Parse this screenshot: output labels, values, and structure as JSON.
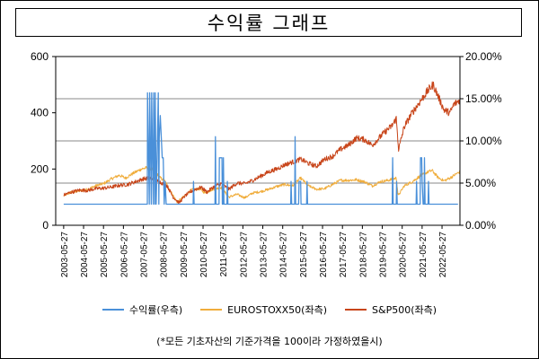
{
  "chart_data": {
    "type": "line",
    "title": "수익률 그래프",
    "footnote": "(*모든 기초자산의 기준가격을 100이라 가정하였을시)",
    "left_axis": {
      "ylim": [
        0,
        600
      ],
      "ticks": [
        "0",
        "200",
        "400",
        "600"
      ],
      "tick_values": [
        0,
        200,
        400,
        600
      ]
    },
    "right_axis": {
      "ylim": [
        0,
        20
      ],
      "ticks": [
        "0.00%",
        "5.00%",
        "10.00%",
        "15.00%",
        "20.00%"
      ],
      "tick_values": [
        0,
        5,
        10,
        15,
        20
      ]
    },
    "x_ticks": [
      "2003-05-27",
      "2004-05-27",
      "2005-05-27",
      "2006-05-27",
      "2007-05-27",
      "2008-05-27",
      "2009-05-27",
      "2010-05-27",
      "2011-05-27",
      "2012-05-27",
      "2013-05-27",
      "2014-05-27",
      "2015-05-27",
      "2016-05-27",
      "2017-05-27",
      "2018-05-27",
      "2019-05-27",
      "2020-05-27",
      "2021-05-27",
      "2022-05-27"
    ],
    "grid": "horizontal",
    "legend_position": "bottom",
    "series": [
      {
        "name": "수익률(우측)",
        "axis": "right",
        "color": "#4a90d9",
        "baseline": 2.5,
        "points": [
          [
            2003.4,
            2.5
          ],
          [
            2007.6,
            2.5
          ],
          [
            2007.61,
            15.7
          ],
          [
            2007.7,
            2.5
          ],
          [
            2007.72,
            15.7
          ],
          [
            2007.8,
            2.5
          ],
          [
            2007.82,
            15.7
          ],
          [
            2007.9,
            2.5
          ],
          [
            2007.92,
            15.7
          ],
          [
            2007.98,
            2.5
          ],
          [
            2008.0,
            15.7
          ],
          [
            2008.05,
            2.5
          ],
          [
            2008.15,
            15.7
          ],
          [
            2008.18,
            2.5
          ],
          [
            2008.2,
            10.5
          ],
          [
            2008.25,
            13.0
          ],
          [
            2008.3,
            10.5
          ],
          [
            2008.35,
            8.0
          ],
          [
            2008.4,
            8.0
          ],
          [
            2008.45,
            2.5
          ],
          [
            2008.5,
            5.2
          ],
          [
            2008.55,
            2.5
          ],
          [
            2009.9,
            2.5
          ],
          [
            2009.92,
            5.2
          ],
          [
            2009.95,
            2.5
          ],
          [
            2011.0,
            2.5
          ],
          [
            2011.02,
            10.5
          ],
          [
            2011.05,
            2.5
          ],
          [
            2011.2,
            2.5
          ],
          [
            2011.22,
            8.0
          ],
          [
            2011.35,
            8.0
          ],
          [
            2011.37,
            2.5
          ],
          [
            2011.4,
            2.5
          ],
          [
            2011.42,
            8.0
          ],
          [
            2011.45,
            2.5
          ],
          [
            2011.6,
            2.5
          ],
          [
            2011.62,
            5.2
          ],
          [
            2011.65,
            2.5
          ],
          [
            2014.8,
            2.5
          ],
          [
            2014.82,
            5.2
          ],
          [
            2014.85,
            2.5
          ],
          [
            2015.0,
            2.5
          ],
          [
            2015.02,
            10.5
          ],
          [
            2015.05,
            2.5
          ],
          [
            2015.2,
            2.5
          ],
          [
            2015.22,
            5.2
          ],
          [
            2015.3,
            5.2
          ],
          [
            2015.32,
            2.5
          ],
          [
            2015.6,
            2.5
          ],
          [
            2015.62,
            5.2
          ],
          [
            2015.65,
            2.5
          ],
          [
            2019.9,
            2.5
          ],
          [
            2019.92,
            8.0
          ],
          [
            2019.95,
            2.5
          ],
          [
            2020.1,
            2.5
          ],
          [
            2020.12,
            5.2
          ],
          [
            2020.15,
            2.5
          ],
          [
            2021.1,
            2.5
          ],
          [
            2021.12,
            5.2
          ],
          [
            2021.15,
            2.5
          ],
          [
            2021.3,
            2.5
          ],
          [
            2021.32,
            8.0
          ],
          [
            2021.38,
            8.0
          ],
          [
            2021.4,
            5.2
          ],
          [
            2021.45,
            2.5
          ],
          [
            2021.5,
            2.5
          ],
          [
            2021.52,
            8.0
          ],
          [
            2021.55,
            2.5
          ],
          [
            2021.7,
            2.5
          ],
          [
            2021.72,
            5.2
          ],
          [
            2021.75,
            2.5
          ],
          [
            2023.2,
            2.5
          ]
        ]
      },
      {
        "name": "EUROSTOXX50(좌측)",
        "axis": "left",
        "color": "#f0ad3c",
        "points": [
          [
            2003.4,
            105
          ],
          [
            2003.8,
            118
          ],
          [
            2004.2,
            122
          ],
          [
            2004.6,
            128
          ],
          [
            2005.0,
            140
          ],
          [
            2005.4,
            148
          ],
          [
            2005.8,
            165
          ],
          [
            2006.2,
            178
          ],
          [
            2006.5,
            168
          ],
          [
            2006.9,
            185
          ],
          [
            2007.3,
            200
          ],
          [
            2007.6,
            205
          ],
          [
            2007.9,
            198
          ],
          [
            2008.2,
            172
          ],
          [
            2008.5,
            155
          ],
          [
            2008.8,
            118
          ],
          [
            2009.1,
            82
          ],
          [
            2009.4,
            100
          ],
          [
            2009.8,
            125
          ],
          [
            2010.2,
            130
          ],
          [
            2010.5,
            115
          ],
          [
            2010.9,
            128
          ],
          [
            2011.3,
            135
          ],
          [
            2011.7,
            100
          ],
          [
            2012.1,
            110
          ],
          [
            2012.5,
            98
          ],
          [
            2012.9,
            115
          ],
          [
            2013.3,
            120
          ],
          [
            2013.7,
            128
          ],
          [
            2014.1,
            138
          ],
          [
            2014.5,
            145
          ],
          [
            2014.9,
            140
          ],
          [
            2015.3,
            168
          ],
          [
            2015.7,
            140
          ],
          [
            2016.1,
            128
          ],
          [
            2016.5,
            130
          ],
          [
            2016.9,
            145
          ],
          [
            2017.3,
            160
          ],
          [
            2017.7,
            160
          ],
          [
            2018.1,
            162
          ],
          [
            2018.5,
            155
          ],
          [
            2018.9,
            140
          ],
          [
            2019.3,
            155
          ],
          [
            2019.7,
            160
          ],
          [
            2020.1,
            168
          ],
          [
            2020.2,
            105
          ],
          [
            2020.5,
            140
          ],
          [
            2020.9,
            155
          ],
          [
            2021.3,
            175
          ],
          [
            2021.7,
            190
          ],
          [
            2021.9,
            195
          ],
          [
            2022.2,
            170
          ],
          [
            2022.5,
            158
          ],
          [
            2022.8,
            168
          ],
          [
            2023.1,
            182
          ],
          [
            2023.3,
            190
          ]
        ]
      },
      {
        "name": "S&P500(좌측)",
        "axis": "left",
        "color": "#c8451a",
        "points": [
          [
            2003.4,
            108
          ],
          [
            2003.8,
            118
          ],
          [
            2004.2,
            125
          ],
          [
            2004.6,
            124
          ],
          [
            2005.0,
            130
          ],
          [
            2005.4,
            132
          ],
          [
            2005.8,
            136
          ],
          [
            2006.2,
            142
          ],
          [
            2006.6,
            145
          ],
          [
            2007.0,
            155
          ],
          [
            2007.4,
            165
          ],
          [
            2007.8,
            168
          ],
          [
            2008.2,
            155
          ],
          [
            2008.6,
            140
          ],
          [
            2008.9,
            100
          ],
          [
            2009.2,
            80
          ],
          [
            2009.5,
            105
          ],
          [
            2009.9,
            125
          ],
          [
            2010.3,
            135
          ],
          [
            2010.6,
            118
          ],
          [
            2010.9,
            135
          ],
          [
            2011.3,
            148
          ],
          [
            2011.7,
            128
          ],
          [
            2012.1,
            150
          ],
          [
            2012.5,
            148
          ],
          [
            2012.9,
            160
          ],
          [
            2013.3,
            175
          ],
          [
            2013.7,
            190
          ],
          [
            2014.1,
            200
          ],
          [
            2014.5,
            215
          ],
          [
            2014.9,
            225
          ],
          [
            2015.3,
            235
          ],
          [
            2015.7,
            220
          ],
          [
            2016.1,
            210
          ],
          [
            2016.5,
            235
          ],
          [
            2016.9,
            245
          ],
          [
            2017.3,
            270
          ],
          [
            2017.7,
            285
          ],
          [
            2018.1,
            310
          ],
          [
            2018.5,
            305
          ],
          [
            2018.9,
            285
          ],
          [
            2019.1,
            300
          ],
          [
            2019.5,
            330
          ],
          [
            2019.9,
            355
          ],
          [
            2020.1,
            380
          ],
          [
            2020.22,
            270
          ],
          [
            2020.5,
            350
          ],
          [
            2020.9,
            400
          ],
          [
            2021.3,
            440
          ],
          [
            2021.7,
            480
          ],
          [
            2021.95,
            500
          ],
          [
            2022.2,
            460
          ],
          [
            2022.5,
            410
          ],
          [
            2022.8,
            400
          ],
          [
            2023.0,
            430
          ],
          [
            2023.3,
            445
          ]
        ]
      }
    ]
  }
}
